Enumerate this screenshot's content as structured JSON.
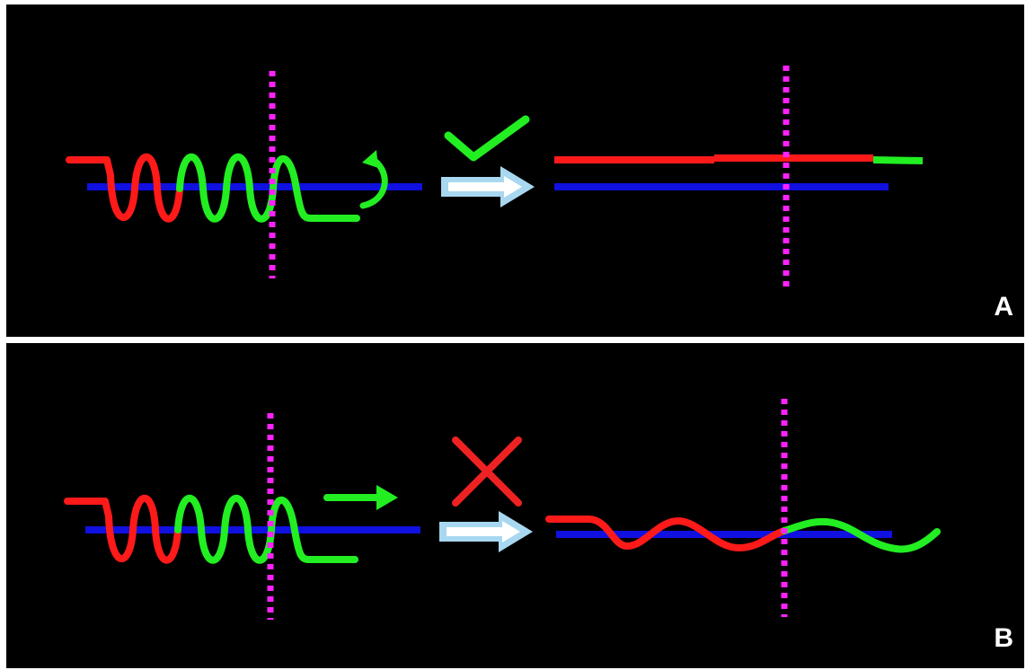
{
  "panels": [
    {
      "label": "A",
      "outcome": "check-icon",
      "result": "straightened"
    },
    {
      "label": "B",
      "outcome": "cross-icon",
      "result": "wavy"
    }
  ],
  "colors": {
    "background": "#000000",
    "separator": "#ffffff",
    "red_strand": "#ff1a1a",
    "green_strand": "#22ee22",
    "blue_line": "#1010e0",
    "magenta_marker": "#ff22ff",
    "arrow_fill": "#ffffff",
    "arrow_outline": "#a8d8f0",
    "check": "#22ee22",
    "cross": "#ee2222"
  }
}
